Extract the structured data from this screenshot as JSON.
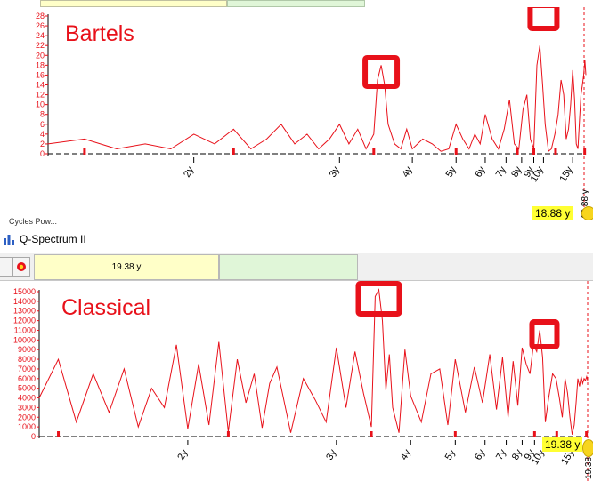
{
  "colors": {
    "line": "#e8111a",
    "marker": "#e8111a",
    "highlight_box": "#e8111a",
    "field_yellow": "#ffffc8",
    "field_green": "#e0f6d8",
    "readout_bg": "#ffff33"
  },
  "top_panel": {
    "cut_label": "Cycles Pow...",
    "readout": "18.88 y",
    "rotated_readout": "18.88 y"
  },
  "window": {
    "title": "Q-Spectrum II",
    "app_icon": "chart-app-icon"
  },
  "toolbar": {
    "icon_button": "square-button",
    "settings_icon": "gear-icon",
    "period_field": "19.38 y"
  },
  "bottom_panel": {
    "readout": "19.38 y",
    "rotated_readout": "19.38 y"
  },
  "chart_data": [
    {
      "type": "line",
      "title": "Bartels",
      "xlabel": "",
      "ylabel": "",
      "ylim": [
        0,
        28
      ],
      "y_ticks": [
        0,
        2,
        4,
        6,
        8,
        10,
        12,
        14,
        16,
        18,
        20,
        22,
        24,
        26,
        28
      ],
      "x_ticks": [
        "2y",
        "3y",
        "4y",
        "5y",
        "6y",
        "7y",
        "8y",
        "9y",
        "10y",
        "15y"
      ],
      "x_tick_values": [
        2,
        3,
        4,
        5,
        6,
        7,
        8,
        9,
        10,
        15
      ],
      "x_scale": "reciprocal",
      "xlim": [
        1.5,
        19.4
      ],
      "highlight_boxes_at": [
        3.5,
        10
      ],
      "x": [
        1.5,
        1.6,
        1.7,
        1.8,
        1.9,
        2.0,
        2.1,
        2.2,
        2.3,
        2.4,
        2.5,
        2.6,
        2.7,
        2.8,
        2.9,
        3.0,
        3.1,
        3.2,
        3.3,
        3.4,
        3.45,
        3.5,
        3.55,
        3.6,
        3.7,
        3.8,
        3.9,
        4.0,
        4.2,
        4.4,
        4.6,
        4.8,
        5.0,
        5.2,
        5.4,
        5.6,
        5.8,
        6.0,
        6.3,
        6.6,
        6.9,
        7.2,
        7.5,
        7.8,
        8.1,
        8.4,
        8.7,
        9.0,
        9.3,
        9.6,
        9.9,
        10.2,
        10.6,
        11.0,
        11.5,
        12.0,
        12.5,
        13.0,
        13.5,
        14.0,
        14.5,
        15.0,
        15.5,
        16.0,
        16.5,
        17.0,
        17.5,
        18.0,
        18.5,
        19.0,
        19.4
      ],
      "y": [
        2,
        3,
        1,
        2,
        1,
        4,
        2,
        5,
        1,
        3,
        6,
        2,
        4,
        1,
        3,
        6,
        2,
        5,
        1,
        4,
        15,
        18,
        14,
        6,
        2,
        1,
        5,
        1,
        3,
        2,
        0.5,
        1,
        6,
        3,
        1,
        4,
        2,
        8,
        3,
        1,
        5,
        11,
        2,
        1,
        9,
        12,
        3,
        1,
        18,
        22,
        14,
        6,
        0.5,
        1,
        4,
        8,
        15,
        12,
        3,
        5,
        10,
        17,
        11,
        2,
        1,
        7,
        12,
        14,
        16,
        19,
        16
      ],
      "markers_at": [
        1.6,
        2.2,
        3.4,
        5.0,
        7.7,
        9.0,
        11.6,
        18.9
      ]
    },
    {
      "type": "line",
      "title": "Classical",
      "xlabel": "",
      "ylabel": "",
      "ylim": [
        0,
        15000
      ],
      "y_ticks": [
        0,
        1000,
        2000,
        3000,
        4000,
        5000,
        6000,
        7000,
        8000,
        9000,
        10000,
        11000,
        12000,
        13000,
        14000,
        15000
      ],
      "x_ticks": [
        "2y",
        "3y",
        "4y",
        "5y",
        "6y",
        "7y",
        "8y",
        "9y",
        "10y",
        "15y"
      ],
      "x_tick_values": [
        2,
        3,
        4,
        5,
        6,
        7,
        8,
        9,
        10,
        15
      ],
      "x_scale": "reciprocal",
      "xlim": [
        1.5,
        19.4
      ],
      "highlight_boxes_at": [
        3.5,
        10
      ],
      "x": [
        1.5,
        1.55,
        1.6,
        1.65,
        1.7,
        1.75,
        1.8,
        1.85,
        1.9,
        1.95,
        2.0,
        2.05,
        2.1,
        2.15,
        2.2,
        2.25,
        2.3,
        2.35,
        2.4,
        2.45,
        2.5,
        2.6,
        2.7,
        2.8,
        2.9,
        3.0,
        3.1,
        3.2,
        3.3,
        3.4,
        3.45,
        3.5,
        3.55,
        3.6,
        3.65,
        3.7,
        3.8,
        3.9,
        4.0,
        4.2,
        4.4,
        4.6,
        4.8,
        5.0,
        5.3,
        5.6,
        5.9,
        6.2,
        6.5,
        6.8,
        7.1,
        7.4,
        7.7,
        8.0,
        8.3,
        8.6,
        8.9,
        9.2,
        9.5,
        9.8,
        10.1,
        10.5,
        11.0,
        11.5,
        12.0,
        12.5,
        13.0,
        13.5,
        14.0,
        14.5,
        15.0,
        15.5,
        16.0,
        16.5,
        17.0,
        17.5,
        18.0,
        18.5,
        19.0,
        19.4
      ],
      "y": [
        4000,
        8000,
        1500,
        6500,
        2500,
        7000,
        1000,
        5000,
        3000,
        9500,
        800,
        7500,
        1200,
        9800,
        500,
        8000,
        3500,
        6500,
        900,
        5500,
        7200,
        400,
        6000,
        3800,
        1500,
        9200,
        3000,
        8800,
        4500,
        1000,
        14500,
        15200,
        12000,
        4800,
        8500,
        3000,
        400,
        9000,
        4200,
        1500,
        6500,
        7000,
        1200,
        8000,
        2500,
        7200,
        3500,
        8500,
        2800,
        8200,
        2000,
        7800,
        3200,
        9200,
        7500,
        6500,
        9500,
        8800,
        11000,
        8200,
        1500,
        4000,
        6500,
        6000,
        4000,
        2000,
        6000,
        4500,
        2000,
        200,
        1200,
        3500,
        6000,
        5200,
        6200,
        5500,
        6000,
        5800,
        6200,
        5800
      ],
      "markers_at": [
        1.55,
        2.2,
        3.4,
        5.0,
        9.0,
        11.6,
        18.9
      ]
    }
  ]
}
